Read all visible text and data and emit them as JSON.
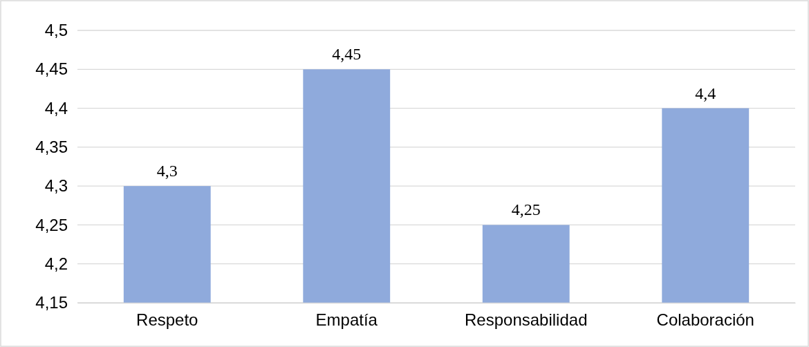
{
  "chart_data": {
    "type": "bar",
    "categories": [
      "Respeto",
      "Empatía",
      "Responsabilidad",
      "Colaboración"
    ],
    "values": [
      4.3,
      4.45,
      4.25,
      4.4
    ],
    "value_labels": [
      "4,3",
      "4,45",
      "4,25",
      "4,4"
    ],
    "color": "#8faadc",
    "ylim": [
      4.15,
      4.5
    ],
    "yticks": [
      {
        "value": 4.15,
        "label": "4,15"
      },
      {
        "value": 4.2,
        "label": "4,2"
      },
      {
        "value": 4.25,
        "label": "4,25"
      },
      {
        "value": 4.3,
        "label": "4,3"
      },
      {
        "value": 4.35,
        "label": "4,35"
      },
      {
        "value": 4.4,
        "label": "4,4"
      },
      {
        "value": 4.45,
        "label": "4,45"
      },
      {
        "value": 4.5,
        "label": "4,5"
      }
    ],
    "grid": "y"
  }
}
